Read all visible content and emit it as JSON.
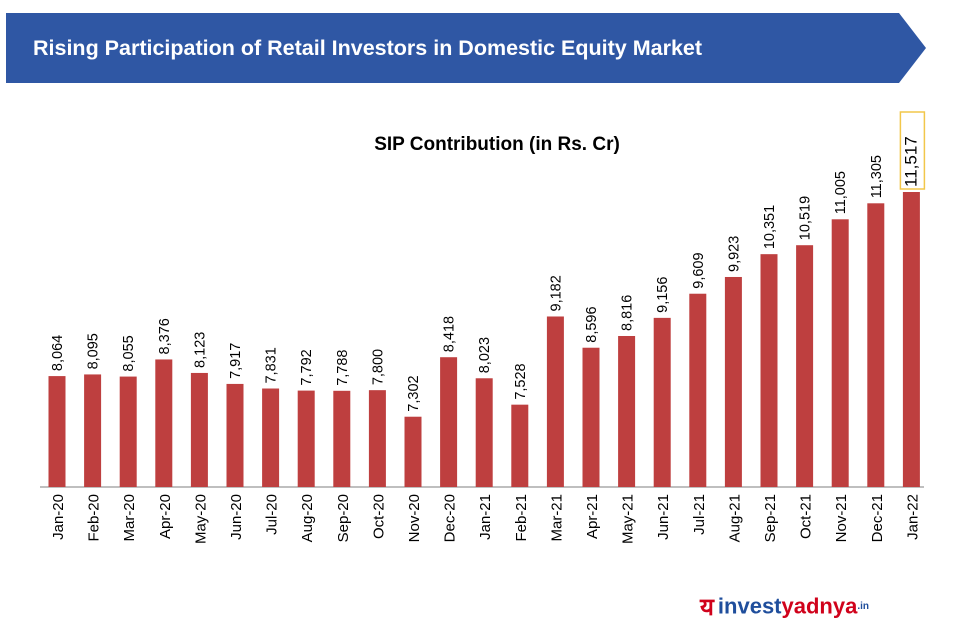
{
  "banner": {
    "title": "Rising Participation of Retail Investors in Domestic Equity Market",
    "color": "#2f57a4"
  },
  "chart_data": {
    "type": "bar",
    "title": "SIP Contribution (in Rs. Cr)",
    "xlabel": "",
    "ylabel": "",
    "categories": [
      "Jan-20",
      "Feb-20",
      "Mar-20",
      "Apr-20",
      "May-20",
      "Jun-20",
      "Jul-20",
      "Aug-20",
      "Sep-20",
      "Oct-20",
      "Nov-20",
      "Dec-20",
      "Jan-21",
      "Feb-21",
      "Mar-21",
      "Apr-21",
      "May-21",
      "Jun-21",
      "Jul-21",
      "Aug-21",
      "Sep-21",
      "Oct-21",
      "Nov-21",
      "Dec-21",
      "Jan-22"
    ],
    "values": [
      8064,
      8095,
      8055,
      8376,
      8123,
      7917,
      7831,
      7792,
      7788,
      7800,
      7302,
      8418,
      8023,
      7528,
      9182,
      8596,
      8816,
      9156,
      9609,
      9923,
      10351,
      10519,
      11005,
      11305,
      11517
    ],
    "value_labels": [
      "8,064",
      "8,095",
      "8,055",
      "8,376",
      "8,123",
      "7,917",
      "7,831",
      "7,792",
      "7,788",
      "7,800",
      "7,302",
      "8,418",
      "8,023",
      "7,528",
      "9,182",
      "8,596",
      "8,816",
      "9,156",
      "9,609",
      "9,923",
      "10,351",
      "10,519",
      "11,005",
      "11,305",
      "11,517"
    ],
    "highlighted_label": "Jan-22",
    "bar_color": "#be3f3f",
    "highlight_box_color": "#f2c74a",
    "grid": false,
    "legend": "none"
  },
  "logo": {
    "mark": "य",
    "part1": "invest",
    "part2": "yadnya",
    "part3": ".in"
  }
}
